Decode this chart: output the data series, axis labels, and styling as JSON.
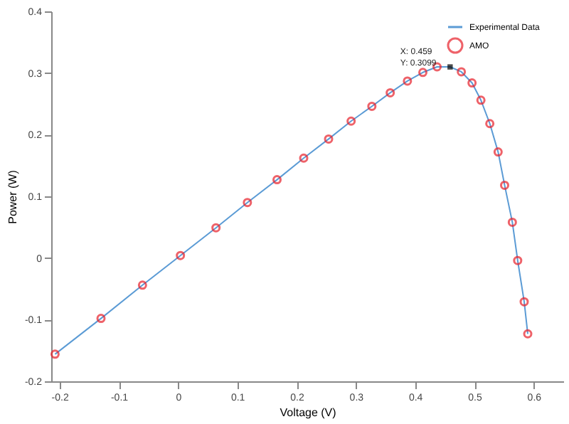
{
  "chart_data": {
    "type": "line",
    "xlabel": "Voltage (V)",
    "ylabel": "Power (W)",
    "xlim": [
      -0.214,
      0.65
    ],
    "ylim": [
      -0.2,
      0.4
    ],
    "xticks": [
      -0.2,
      -0.1,
      0,
      0.1,
      0.2,
      0.3,
      0.4,
      0.5,
      0.6
    ],
    "yticks": [
      -0.2,
      -0.1,
      0,
      0.1,
      0.2,
      0.3,
      0.4
    ],
    "grid": false,
    "legend": "top right",
    "x": [
      -0.2075,
      -0.13,
      -0.06,
      0.004,
      0.064,
      0.117,
      0.167,
      0.212,
      0.254,
      0.292,
      0.327,
      0.358,
      0.387,
      0.413,
      0.437,
      0.459,
      0.478,
      0.496,
      0.511,
      0.526,
      0.54,
      0.551,
      0.564,
      0.573,
      0.584,
      0.59
    ],
    "series": [
      {
        "name": "Experimental Data",
        "type": "line",
        "color": "#5b9bd5",
        "marker": "none",
        "line_style": "solid",
        "values": [
          -0.156,
          -0.098,
          -0.044,
          0.004,
          0.049,
          0.09,
          0.127,
          0.162,
          0.193,
          0.222,
          0.246,
          0.268,
          0.287,
          0.301,
          0.31,
          0.31,
          0.302,
          0.284,
          0.256,
          0.218,
          0.172,
          0.118,
          0.058,
          -0.004,
          -0.071,
          -0.123
        ]
      },
      {
        "name": "AMO",
        "type": "scatter",
        "color": "#e8202a",
        "marker": "circle",
        "values": [
          -0.156,
          -0.098,
          -0.044,
          0.004,
          0.049,
          0.09,
          0.127,
          0.162,
          0.193,
          0.222,
          0.246,
          0.268,
          0.287,
          0.301,
          0.31,
          null,
          0.302,
          0.284,
          0.256,
          0.218,
          0.172,
          0.118,
          0.058,
          -0.004,
          -0.071,
          -0.123
        ]
      }
    ],
    "annotations": [
      {
        "text": "X: 0.459\nY: 0.3099",
        "x": 0.459,
        "y": 0.3099
      }
    ]
  }
}
